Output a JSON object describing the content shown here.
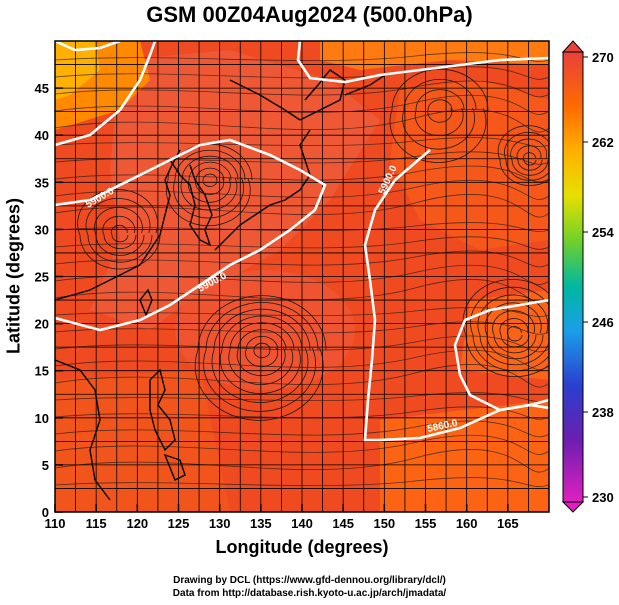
{
  "header": {
    "title": "GSM 00Z04Aug2024 (500.0hPa)"
  },
  "axes": {
    "xlabel": "Longitude (degrees)",
    "ylabel": "Latitude  (degrees)",
    "x_ticks": [
      "110",
      "115",
      "120",
      "125",
      "130",
      "135",
      "140",
      "145",
      "150",
      "155",
      "160",
      "165"
    ],
    "y_ticks": [
      "0",
      "5",
      "10",
      "15",
      "20",
      "25",
      "30",
      "35",
      "40",
      "45"
    ]
  },
  "colorbar": {
    "labels": [
      "270",
      "262",
      "254",
      "246",
      "238",
      "230"
    ],
    "colors": [
      "#e8413c",
      "#ff8a00",
      "#ffd400",
      "#7ed321",
      "#00b39a",
      "#1e6fe0",
      "#3b2fc9",
      "#7a1fb0",
      "#e020c0"
    ]
  },
  "contours": {
    "label_5900": "5900.0",
    "label_5860": "5860.0"
  },
  "footer": {
    "credit1": "Drawing by DCL (https://www.gfd-dennou.org/library/dcl/)",
    "credit2": "Data from http://database.rish.kyoto-u.ac.jp/arch/jmadata/"
  },
  "chart_data": {
    "type": "heatmap",
    "title": "GSM 00Z04Aug2024 (500.0hPa)",
    "xlabel": "Longitude (degrees)",
    "ylabel": "Latitude  (degrees)",
    "xlim": [
      110,
      170
    ],
    "ylim": [
      0,
      50
    ],
    "colorbar_range": [
      230,
      270
    ],
    "colorbar_ticks": [
      270,
      262,
      254,
      246,
      238,
      230
    ],
    "contour_levels": [
      5860,
      5900
    ],
    "grid": true
  }
}
